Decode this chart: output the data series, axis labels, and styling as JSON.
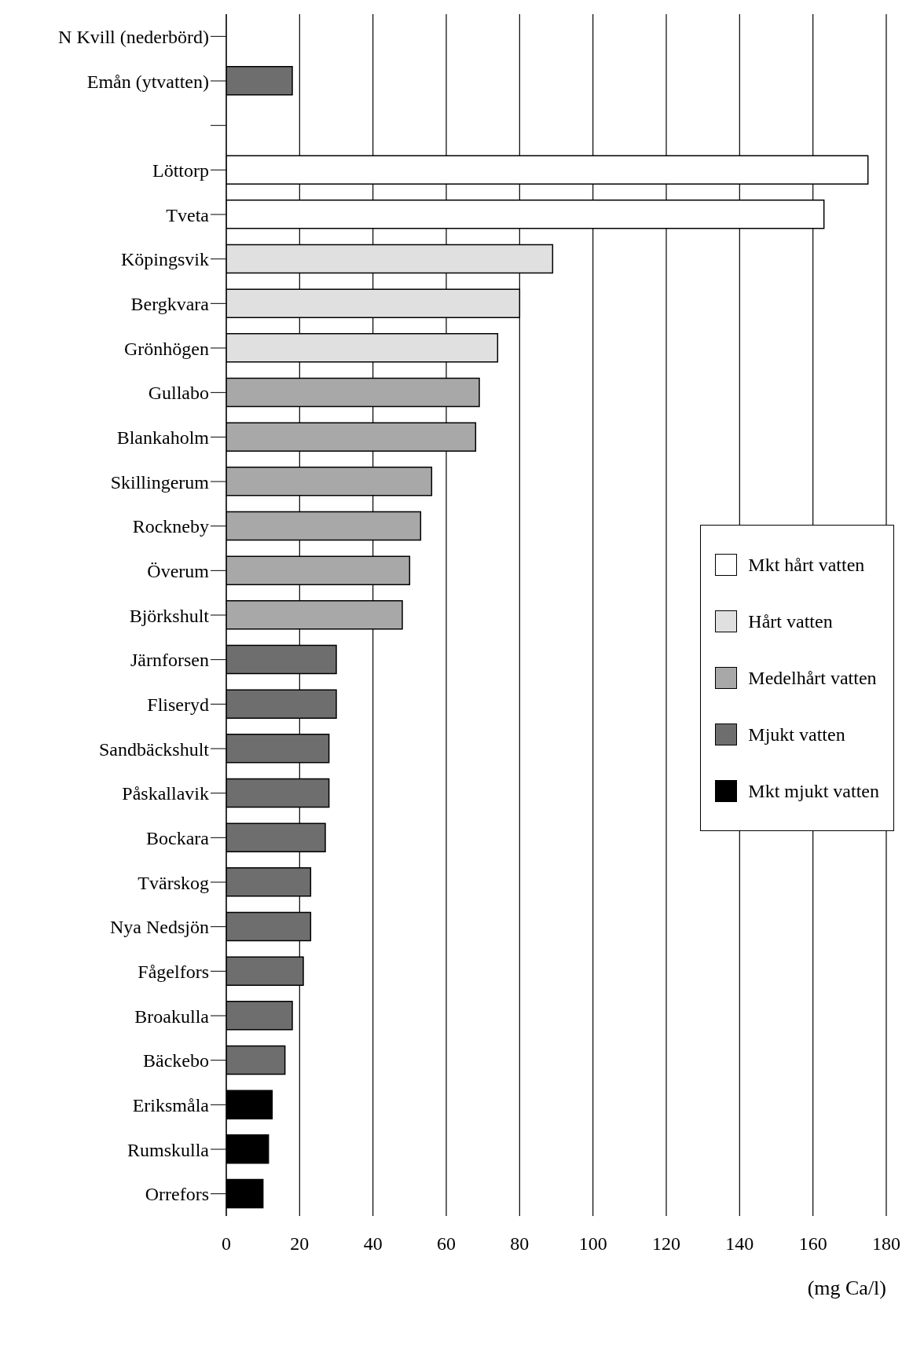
{
  "chart_data": {
    "type": "bar",
    "orientation": "horizontal",
    "stacked": true,
    "xlabel": "(mg Ca/l)",
    "categories": [
      "N Kvill (nederbörd)",
      "Emån (ytvatten)",
      null,
      "Löttorp",
      "Tveta",
      "Köpingsvik",
      "Bergkvara",
      "Grönhögen",
      "Gullabo",
      "Blankaholm",
      "Skillingerum",
      "Rockneby",
      "Överum",
      "Björkshult",
      "Järnforsen",
      "Fliseryd",
      "Sandbäckshult",
      "Påskallavik",
      "Bockara",
      "Tvärskog",
      "Nya Nedsjön",
      "Fågelfors",
      "Broakulla",
      "Bäckebo",
      "Eriksmåla",
      "Rumskulla",
      "Orrefors"
    ],
    "series": [
      {
        "name": "Mkt hårt vatten",
        "color": "#ffffff",
        "values": [
          null,
          null,
          null,
          175,
          163,
          null,
          null,
          null,
          null,
          null,
          null,
          null,
          null,
          null,
          null,
          null,
          null,
          null,
          null,
          null,
          null,
          null,
          null,
          null,
          null,
          null,
          null
        ]
      },
      {
        "name": "Hårt vatten",
        "color": "#e0e0e0",
        "values": [
          null,
          null,
          null,
          null,
          null,
          89,
          80,
          74,
          null,
          null,
          null,
          null,
          null,
          null,
          null,
          null,
          null,
          null,
          null,
          null,
          null,
          null,
          null,
          null,
          null,
          null,
          null
        ]
      },
      {
        "name": "Medelhårt vatten",
        "color": "#a8a8a8",
        "values": [
          null,
          null,
          null,
          null,
          null,
          null,
          null,
          null,
          69,
          68,
          56,
          53,
          50,
          48,
          null,
          null,
          null,
          null,
          null,
          null,
          null,
          null,
          null,
          null,
          null,
          null,
          null
        ]
      },
      {
        "name": "Mjukt vatten",
        "color": "#6e6e6e",
        "values": [
          null,
          18,
          null,
          null,
          null,
          null,
          null,
          null,
          null,
          null,
          null,
          null,
          null,
          null,
          30,
          30,
          28,
          28,
          27,
          23,
          23,
          21,
          18,
          16,
          null,
          null,
          null
        ]
      },
      {
        "name": "Mkt mjukt vatten",
        "color": "#000000",
        "values": [
          null,
          null,
          null,
          null,
          null,
          null,
          null,
          null,
          null,
          null,
          null,
          null,
          null,
          null,
          null,
          null,
          null,
          null,
          null,
          null,
          null,
          null,
          null,
          null,
          12.5,
          11.5,
          10
        ]
      }
    ],
    "xlim": [
      0,
      180
    ],
    "xticks": [
      0,
      20,
      40,
      60,
      80,
      100,
      120,
      140,
      160,
      180
    ],
    "grid": "x",
    "legend": "right"
  }
}
